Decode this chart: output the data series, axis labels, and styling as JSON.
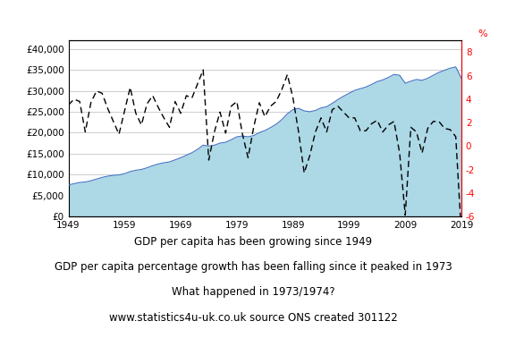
{
  "years": [
    1949,
    1950,
    1951,
    1952,
    1953,
    1954,
    1955,
    1956,
    1957,
    1958,
    1959,
    1960,
    1961,
    1962,
    1963,
    1964,
    1965,
    1966,
    1967,
    1968,
    1969,
    1970,
    1971,
    1972,
    1973,
    1974,
    1975,
    1976,
    1977,
    1978,
    1979,
    1980,
    1981,
    1982,
    1983,
    1984,
    1985,
    1986,
    1987,
    1988,
    1989,
    1990,
    1991,
    1992,
    1993,
    1994,
    1995,
    1996,
    1997,
    1998,
    1999,
    2000,
    2001,
    2002,
    2003,
    2004,
    2005,
    2006,
    2007,
    2008,
    2009,
    2010,
    2011,
    2012,
    2013,
    2014,
    2015,
    2016,
    2017,
    2018,
    2019
  ],
  "gdp_capita": [
    7500,
    7800,
    8100,
    8200,
    8500,
    8900,
    9300,
    9600,
    9800,
    9900,
    10200,
    10700,
    11000,
    11200,
    11600,
    12100,
    12500,
    12800,
    13000,
    13500,
    14000,
    14600,
    15200,
    16000,
    17000,
    16800,
    17000,
    17500,
    17700,
    18300,
    19000,
    19200,
    19000,
    19300,
    20000,
    20500,
    21200,
    22000,
    23100,
    24500,
    25500,
    25800,
    25200,
    25000,
    25300,
    25900,
    26200,
    27000,
    27900,
    28700,
    29400,
    30100,
    30500,
    30900,
    31500,
    32200,
    32600,
    33200,
    33900,
    33700,
    31800,
    32300,
    32700,
    32500,
    33000,
    33700,
    34400,
    34900,
    35400,
    35700,
    33000
  ],
  "gdp_growth": [
    3.5,
    4.0,
    3.8,
    1.2,
    3.7,
    4.7,
    4.5,
    3.2,
    2.1,
    1.0,
    3.0,
    5.0,
    2.8,
    1.8,
    3.6,
    4.3,
    3.3,
    2.4,
    1.6,
    3.8,
    2.8,
    4.3,
    4.1,
    5.3,
    6.5,
    -1.2,
    1.2,
    2.9,
    1.1,
    3.4,
    3.8,
    1.0,
    -1.0,
    1.6,
    3.7,
    2.5,
    3.4,
    3.8,
    4.8,
    6.1,
    4.1,
    1.2,
    -2.3,
    -0.8,
    1.2,
    2.4,
    1.2,
    3.1,
    3.4,
    2.9,
    2.4,
    2.4,
    1.3,
    1.3,
    1.9,
    2.2,
    1.2,
    1.8,
    2.1,
    -0.6,
    -5.9,
    1.6,
    1.2,
    -0.6,
    1.5,
    2.1,
    2.1,
    1.5,
    1.4,
    0.8,
    -7.5
  ],
  "ylim_left": [
    0,
    42000
  ],
  "ylim_right": [
    -6,
    9
  ],
  "yticks_left": [
    0,
    5000,
    10000,
    15000,
    20000,
    25000,
    30000,
    35000,
    40000
  ],
  "ytick_labels_left": [
    "£0",
    "£5,000",
    "£10,000",
    "£15,000",
    "£20,000",
    "£25,000",
    "£30,000",
    "£35,000",
    "£40,000"
  ],
  "yticks_right": [
    -6,
    -4,
    -2,
    0,
    2,
    4,
    6,
    8
  ],
  "ytick_labels_right": [
    "-6",
    "-4",
    "-2",
    "0",
    "2",
    "4",
    "6",
    "8"
  ],
  "xticks": [
    1949,
    1959,
    1969,
    1979,
    1989,
    1999,
    2009,
    2019
  ],
  "fill_color": "#add8e6",
  "fill_edge_color": "#4472c4",
  "line_color": "#000000",
  "right_axis_color": "#ff0000",
  "percent_label": "%",
  "annotation1": "GDP per capita has been growing since 1949",
  "annotation2": "GDP per capita percentage growth has been falling since it peaked in 1973",
  "annotation3": "What happened in 1973/1974?",
  "annotation4": "www.statistics4u-uk.co.uk source ONS created 301122",
  "annotation_fontsize": 8.5,
  "bg_color": "#ffffff"
}
